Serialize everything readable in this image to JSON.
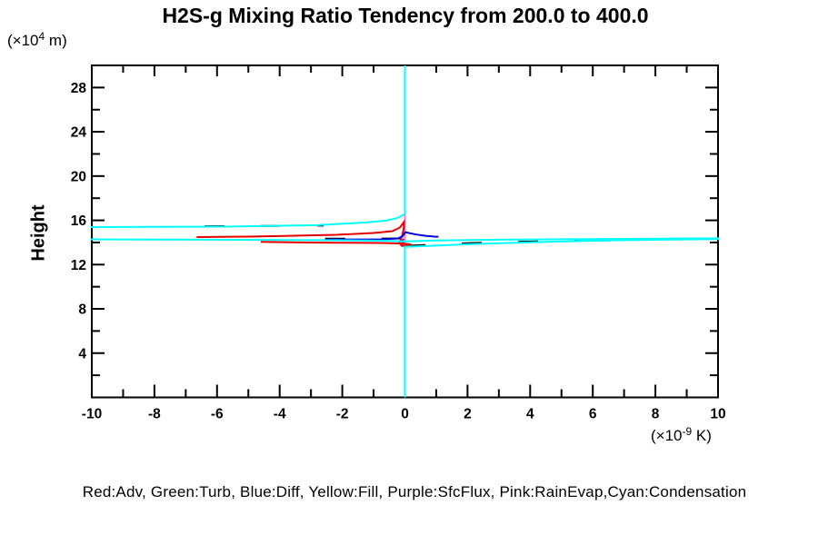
{
  "title": "H2S-g Mixing Ratio Tendency from 200.0 to 400.0",
  "y_axis_unit": {
    "prefix": "(×10",
    "exponent": "4",
    "suffix": " m)"
  },
  "x_axis_unit": {
    "prefix": "(×10",
    "exponent": "-9",
    "suffix": " K)"
  },
  "legend_text": "Red:Adv, Green:Turb, Blue:Diff, Yellow:Fill, Purple:SfcFlux, Pink:RainEvap,Cyan:Condensation",
  "colors": {
    "red": "#e60000",
    "green": "#00b800",
    "blue": "#0000e0",
    "yellow": "#e8e800",
    "purple": "#8800cc",
    "pink": "#ff77cc",
    "cyan": "#00ffff",
    "black": "#000000",
    "frame": "#000000",
    "background": "#ffffff"
  },
  "chart_data": {
    "type": "line",
    "title": "H2S-g Mixing Ratio Tendency from 200.0 to 400.0",
    "xlabel": "(×10^-9 K)",
    "ylabel": "Height",
    "ylabel_unit": "(×10^4 m)",
    "xlim": [
      -10,
      10
    ],
    "ylim": [
      0,
      30
    ],
    "grid": false,
    "legend_position": "bottom-text-note",
    "x_major_ticks": [
      -10,
      -8,
      -6,
      -4,
      -2,
      0,
      2,
      4,
      6,
      8,
      10
    ],
    "x_minor_ticks": [
      -9,
      -7,
      -5,
      -3,
      -1,
      1,
      3,
      5,
      7,
      9
    ],
    "y_major_ticks": [
      4,
      8,
      12,
      16,
      20,
      24,
      28
    ],
    "y_minor_ticks": [
      2,
      6,
      10,
      14,
      18,
      22,
      26
    ],
    "series": [
      {
        "name": "Fill",
        "color": "#e8e800",
        "dash": null,
        "segments": [
          [
            [
              0,
              0.05
            ],
            [
              0,
              29.9
            ]
          ]
        ]
      },
      {
        "name": "Turb",
        "color": "#00b800",
        "dash": null,
        "segments": [
          [
            [
              0,
              0.05
            ],
            [
              0,
              29.9
            ]
          ]
        ]
      },
      {
        "name": "RainEvap",
        "color": "#ff77cc",
        "dash": null,
        "segments": [
          [
            [
              0,
              0.05
            ],
            [
              0,
              29.9
            ]
          ]
        ]
      },
      {
        "name": "SfcFlux",
        "color": "#8800cc",
        "dash": null,
        "segments": [
          [
            [
              -0.04,
              14.35
            ],
            [
              -0.1,
              14.1
            ],
            [
              -0.03,
              13.82
            ]
          ]
        ]
      },
      {
        "name": "black-dashed",
        "color": "#000000",
        "dash": "22 40",
        "segments": [
          [
            [
              -6.4,
              15.46
            ],
            [
              -2.6,
              15.52
            ]
          ],
          [
            [
              -2.55,
              14.34
            ],
            [
              -0.05,
              14.36
            ]
          ],
          [
            [
              0.02,
              13.7
            ],
            [
              2.2,
              13.95
            ],
            [
              4.5,
              14.12
            ],
            [
              6.8,
              14.3
            ],
            [
              10,
              14.36
            ]
          ]
        ]
      },
      {
        "name": "Adv",
        "color": "#e60000",
        "dash": null,
        "segments": [
          [
            [
              -6.65,
              14.49
            ],
            [
              -5.0,
              14.53
            ],
            [
              -4.2,
              14.57
            ],
            [
              -2.2,
              14.69
            ],
            [
              -1.0,
              14.86
            ],
            [
              -0.4,
              15.02
            ],
            [
              -0.16,
              15.35
            ],
            [
              -0.07,
              15.7
            ],
            [
              -0.03,
              15.85
            ],
            [
              -0.04,
              15.2
            ],
            [
              -0.08,
              14.7
            ],
            [
              -0.13,
              14.3
            ],
            [
              -0.17,
              14.0
            ],
            [
              -0.1,
              13.7
            ],
            [
              0.08,
              13.68
            ],
            [
              0.2,
              13.82
            ],
            [
              0.0,
              13.88
            ],
            [
              -0.3,
              13.92
            ],
            [
              -0.75,
              13.95
            ],
            [
              -2.2,
              13.98
            ],
            [
              -3.4,
              14.0
            ],
            [
              -4.6,
              14.05
            ]
          ]
        ]
      },
      {
        "name": "Diff",
        "color": "#0000e0",
        "dash": null,
        "segments": [
          [
            [
              -2.5,
              14.27
            ],
            [
              -0.75,
              14.28
            ],
            [
              -0.22,
              14.36
            ],
            [
              -0.08,
              14.55
            ],
            [
              -0.02,
              14.8
            ],
            [
              0.02,
              14.93
            ],
            [
              0.14,
              14.85
            ],
            [
              0.37,
              14.72
            ],
            [
              0.66,
              14.6
            ],
            [
              0.95,
              14.53
            ],
            [
              1.07,
              14.52
            ]
          ]
        ]
      },
      {
        "name": "Condensation",
        "color": "#00ffff",
        "dash": null,
        "segments": [
          [
            [
              0,
              30
            ],
            [
              0,
              16.6
            ],
            [
              -0.07,
              16.45
            ],
            [
              -0.25,
              16.2
            ],
            [
              -0.6,
              15.97
            ],
            [
              -1.3,
              15.8
            ],
            [
              -2.8,
              15.56
            ],
            [
              -5.7,
              15.43
            ],
            [
              -10,
              15.39
            ],
            [
              -11.2,
              15.3
            ],
            [
              -11.2,
              14.3
            ],
            [
              -10,
              14.28
            ],
            [
              -6,
              14.25
            ],
            [
              -2,
              14.2
            ],
            [
              -0.5,
              14.15
            ],
            [
              0,
              14.1
            ],
            [
              1,
              14.18
            ],
            [
              3,
              14.25
            ],
            [
              6,
              14.31
            ],
            [
              10,
              14.37
            ],
            [
              11.2,
              14.36
            ],
            [
              11.2,
              14.33
            ],
            [
              10,
              14.31
            ],
            [
              6.8,
              14.2
            ],
            [
              4.5,
              14.05
            ],
            [
              2.2,
              13.86
            ],
            [
              0.8,
              13.7
            ],
            [
              0.1,
              13.62
            ],
            [
              0,
              13.6
            ],
            [
              0,
              0
            ]
          ]
        ]
      }
    ]
  }
}
